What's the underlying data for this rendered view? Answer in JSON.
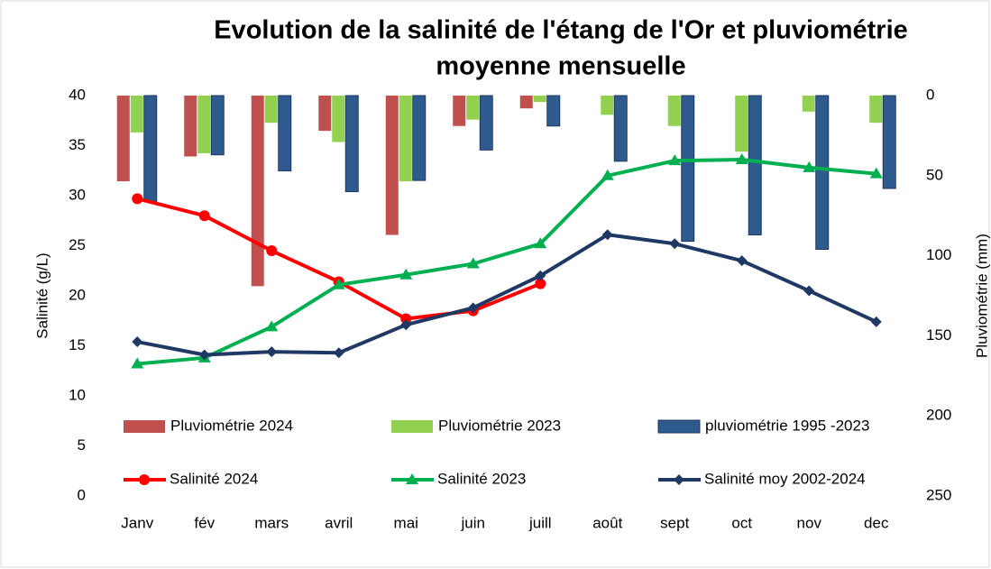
{
  "chart_data": {
    "type": "combo",
    "title": [
      "Evolution de la salinité de l'étang de l'Or et pluviométrie",
      "moyenne mensuelle"
    ],
    "y_label": "Salinité (g/L)",
    "y2_label": "Pluviométrie (mm)",
    "categories": [
      "Janv",
      "fév",
      "mars",
      "avril",
      "mai",
      "juin",
      "juill",
      "août",
      "sept",
      "oct",
      "nov",
      "dec"
    ],
    "ylim": [
      0,
      40
    ],
    "yticks": [
      0,
      5,
      10,
      15,
      20,
      25,
      30,
      35,
      40
    ],
    "y2lim": [
      0,
      250
    ],
    "y2ticks": [
      0,
      50,
      100,
      150,
      200,
      250
    ],
    "y2_reversed": true,
    "grid": false,
    "series": [
      {
        "name": "Pluviométrie 2024",
        "kind": "bar",
        "axis": "y2",
        "color": "#c0504d",
        "values": [
          53.5,
          38,
          119,
          22,
          87,
          19,
          8,
          null,
          null,
          null,
          null,
          null
        ]
      },
      {
        "name": "Pluviométrie 2023",
        "kind": "bar",
        "axis": "y2",
        "color": "#92d050",
        "values": [
          23,
          36,
          17,
          29,
          53.5,
          15,
          4,
          12,
          19,
          35,
          10,
          17
        ]
      },
      {
        "name": "pluviométrie 1995 -2023",
        "kind": "bar",
        "axis": "y2",
        "color": "#2e5a8e",
        "values": [
          66,
          37,
          47,
          60,
          53,
          34,
          19,
          41,
          91,
          87,
          96,
          58
        ]
      },
      {
        "name": "Salinité 2024",
        "kind": "line",
        "marker": "circle",
        "color": "#ff0000",
        "values": [
          29.7,
          28.0,
          24.5,
          21.4,
          17.7,
          18.5,
          21.2,
          null,
          null,
          null,
          null,
          null
        ]
      },
      {
        "name": "Salinité 2023",
        "kind": "line",
        "marker": "triangle",
        "color": "#00b050",
        "values": [
          13.2,
          13.8,
          16.9,
          21.1,
          22.1,
          23.2,
          25.2,
          32.0,
          33.5,
          33.6,
          32.8,
          32.2
        ]
      },
      {
        "name": "Salinité moy 2002-2024",
        "kind": "line",
        "marker": "diamond",
        "color": "#1f3864",
        "values": [
          15.4,
          14.1,
          14.4,
          14.3,
          17.1,
          18.8,
          22.0,
          26.1,
          25.2,
          23.5,
          20.5,
          17.4
        ]
      }
    ]
  }
}
